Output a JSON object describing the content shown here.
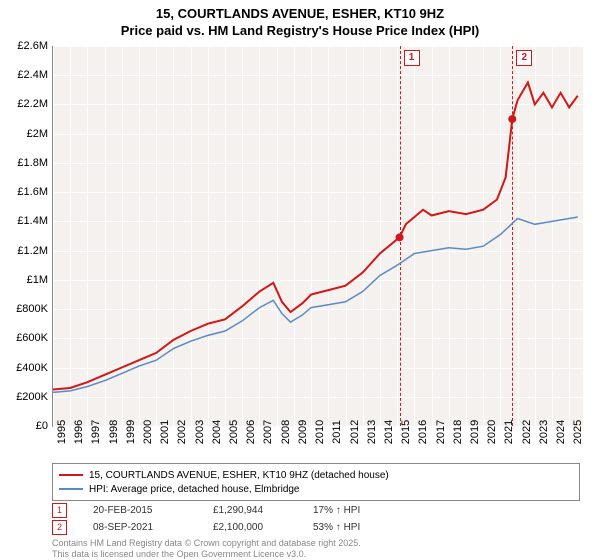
{
  "title": {
    "line1": "15, COURTLANDS AVENUE, ESHER, KT10 9HZ",
    "line2": "Price paid vs. HM Land Registry's House Price Index (HPI)"
  },
  "chart": {
    "type": "line",
    "background_color": "#f5f1ee",
    "grid_color": "#ffffff",
    "axis_color": "#888888",
    "x_years": [
      1995,
      1996,
      1997,
      1998,
      1999,
      2000,
      2001,
      2002,
      2003,
      2004,
      2005,
      2006,
      2007,
      2008,
      2009,
      2010,
      2011,
      2012,
      2013,
      2014,
      2015,
      2016,
      2017,
      2018,
      2019,
      2020,
      2021,
      2022,
      2023,
      2024,
      2025
    ],
    "xlim": [
      1995,
      2025.8
    ],
    "ylim": [
      0,
      2600000
    ],
    "ytick_step": 200000,
    "y_labels": [
      "£0",
      "£200K",
      "£400K",
      "£600K",
      "£800K",
      "£1M",
      "£1.2M",
      "£1.4M",
      "£1.6M",
      "£1.8M",
      "£2M",
      "£2.2M",
      "£2.4M",
      "£2.6M"
    ],
    "series": [
      {
        "name": "15, COURTLANDS AVENUE, ESHER, KT10 9HZ (detached house)",
        "color": "#d01818",
        "width": 2,
        "data": [
          [
            1995,
            250000
          ],
          [
            1996,
            260000
          ],
          [
            1997,
            300000
          ],
          [
            1998,
            350000
          ],
          [
            1999,
            400000
          ],
          [
            2000,
            450000
          ],
          [
            2001,
            500000
          ],
          [
            2002,
            590000
          ],
          [
            2003,
            650000
          ],
          [
            2004,
            700000
          ],
          [
            2005,
            730000
          ],
          [
            2006,
            820000
          ],
          [
            2007,
            920000
          ],
          [
            2007.8,
            980000
          ],
          [
            2008.3,
            850000
          ],
          [
            2008.8,
            780000
          ],
          [
            2009.5,
            840000
          ],
          [
            2010,
            900000
          ],
          [
            2011,
            930000
          ],
          [
            2012,
            960000
          ],
          [
            2013,
            1050000
          ],
          [
            2014,
            1180000
          ],
          [
            2015.14,
            1290944
          ],
          [
            2015.5,
            1380000
          ],
          [
            2016,
            1430000
          ],
          [
            2016.5,
            1480000
          ],
          [
            2017,
            1440000
          ],
          [
            2018,
            1470000
          ],
          [
            2019,
            1450000
          ],
          [
            2020,
            1480000
          ],
          [
            2020.8,
            1550000
          ],
          [
            2021.3,
            1700000
          ],
          [
            2021.69,
            2100000
          ],
          [
            2022,
            2230000
          ],
          [
            2022.6,
            2350000
          ],
          [
            2023,
            2200000
          ],
          [
            2023.5,
            2280000
          ],
          [
            2024,
            2180000
          ],
          [
            2024.5,
            2280000
          ],
          [
            2025,
            2180000
          ],
          [
            2025.5,
            2260000
          ]
        ]
      },
      {
        "name": "HPI: Average price, detached house, Elmbridge",
        "color": "#5a8bc4",
        "width": 1.5,
        "data": [
          [
            1995,
            230000
          ],
          [
            1996,
            240000
          ],
          [
            1997,
            270000
          ],
          [
            1998,
            310000
          ],
          [
            1999,
            360000
          ],
          [
            2000,
            410000
          ],
          [
            2001,
            450000
          ],
          [
            2002,
            530000
          ],
          [
            2003,
            580000
          ],
          [
            2004,
            620000
          ],
          [
            2005,
            650000
          ],
          [
            2006,
            720000
          ],
          [
            2007,
            810000
          ],
          [
            2007.8,
            860000
          ],
          [
            2008.3,
            770000
          ],
          [
            2008.8,
            710000
          ],
          [
            2009.5,
            760000
          ],
          [
            2010,
            810000
          ],
          [
            2011,
            830000
          ],
          [
            2012,
            850000
          ],
          [
            2013,
            920000
          ],
          [
            2014,
            1030000
          ],
          [
            2015,
            1100000
          ],
          [
            2016,
            1180000
          ],
          [
            2017,
            1200000
          ],
          [
            2018,
            1220000
          ],
          [
            2019,
            1210000
          ],
          [
            2020,
            1230000
          ],
          [
            2021,
            1310000
          ],
          [
            2022,
            1420000
          ],
          [
            2023,
            1380000
          ],
          [
            2024,
            1400000
          ],
          [
            2025,
            1420000
          ],
          [
            2025.5,
            1430000
          ]
        ]
      }
    ],
    "markers": [
      {
        "id": "1",
        "x": 2015.14,
        "y": 1290944,
        "date": "20-FEB-2015",
        "price": "£1,290,944",
        "pct": "17% ↑ HPI"
      },
      {
        "id": "2",
        "x": 2021.69,
        "y": 2100000,
        "date": "08-SEP-2021",
        "price": "£2,100,000",
        "pct": "53% ↑ HPI"
      }
    ]
  },
  "footer": {
    "line1": "Contains HM Land Registry data © Crown copyright and database right 2025.",
    "line2": "This data is licensed under the Open Government Licence v3.0."
  }
}
